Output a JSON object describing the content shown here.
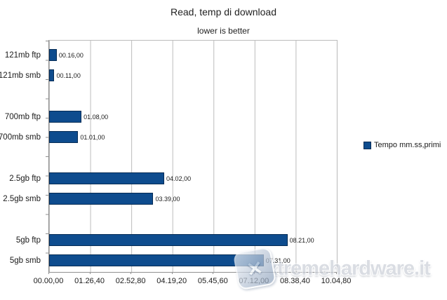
{
  "chart_data": {
    "type": "bar",
    "orientation": "horizontal",
    "title": "Read, temp di download",
    "subtitle": "lower is better",
    "categories": [
      "121mb ftp",
      "121mb smb",
      "700mb ftp",
      "700mb smb",
      "2.5gb ftp",
      "2.5gb smb",
      "5gb ftp",
      "5gb smb"
    ],
    "value_labels": [
      "00.16,00",
      "00.11,00",
      "01.08,00",
      "01.01,00",
      "04.02,00",
      "03.39,00",
      "08.21,00",
      "07.31,00"
    ],
    "values_seconds": [
      16,
      11,
      68,
      61,
      242,
      219,
      501,
      451
    ],
    "group_size": 2,
    "x_ticks": [
      "00.00,00",
      "01.26,40",
      "02.52,80",
      "04.19,20",
      "05.45,60",
      "07.12,00",
      "08.38,40",
      "10.04,80"
    ],
    "x_tick_seconds": [
      0,
      86.4,
      172.8,
      259.2,
      345.6,
      432,
      518.4,
      604.8
    ],
    "x_max_seconds": 604.8,
    "xlabel": "",
    "ylabel": "",
    "grid": true,
    "legend_label": "Tempo mm.ss,primi",
    "legend_position": "right",
    "bar_color": "#0e4c8e",
    "bar_border_color": "#062c55",
    "gridline_color": "#bcbcbc"
  },
  "watermark": {
    "text": "xtremehardware.it",
    "logo": "x-tile-logo"
  }
}
